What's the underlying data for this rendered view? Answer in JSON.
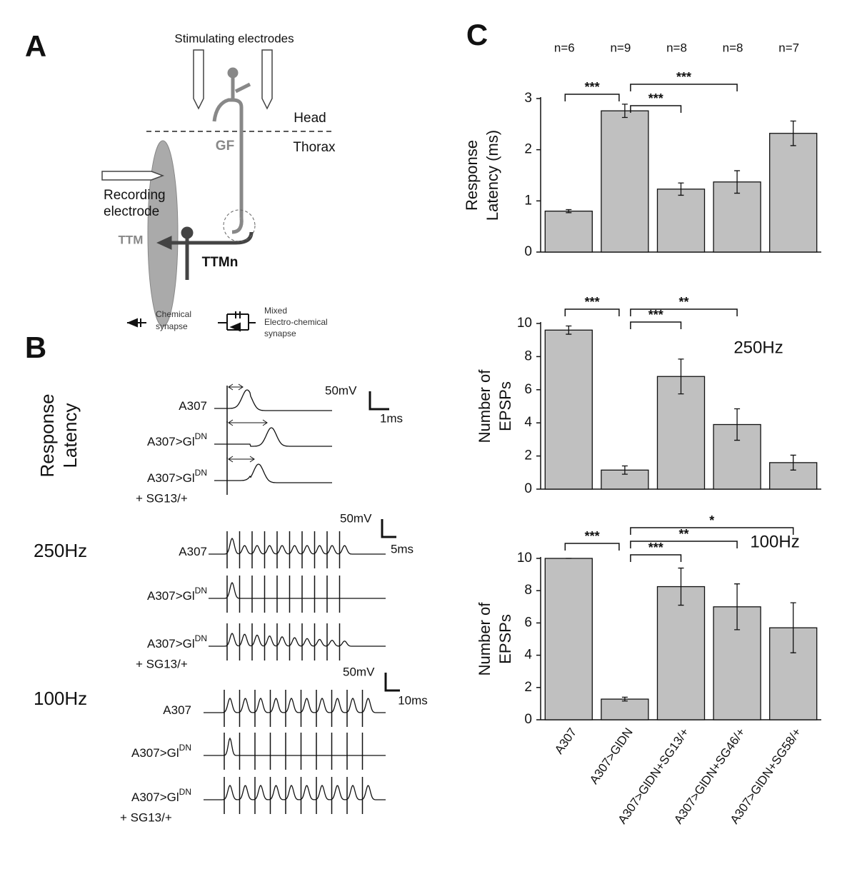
{
  "panel_labels": {
    "a": "A",
    "b": "B",
    "c": "C"
  },
  "diagram": {
    "stimulating": "Stimulating electrodes",
    "head": "Head",
    "thorax": "Thorax",
    "gf": "GF",
    "recording": [
      "Recording",
      "electrode"
    ],
    "ttm": "TTM",
    "ttmn": "TTMn",
    "chemical": [
      "Chemical",
      "synapse"
    ],
    "mixed": [
      "Mixed",
      "Electro-chemical",
      "synapse"
    ]
  },
  "recordings": [
    {
      "title": [
        "Response",
        "Latency"
      ],
      "scale_v": "50mV",
      "scale_t": "1ms",
      "traces": [
        {
          "name": "A307"
        },
        {
          "name": "A307>Gl",
          "sup": "DN"
        },
        {
          "name": "A307>Gl",
          "sup": "DN",
          "note": "+ SG13/+"
        }
      ]
    },
    {
      "title": [
        "250Hz"
      ],
      "scale_v": "50mV",
      "scale_t": "5ms",
      "traces": [
        {
          "name": "A307"
        },
        {
          "name": "A307>Gl",
          "sup": "DN"
        },
        {
          "name": "A307>Gl",
          "sup": "DN",
          "note": "+ SG13/+"
        }
      ]
    },
    {
      "title": [
        "100Hz"
      ],
      "scale_v": "50mV",
      "scale_t": "10ms",
      "traces": [
        {
          "name": "A307"
        },
        {
          "name": "A307>Gl",
          "sup": "DN"
        },
        {
          "name": "A307>Gl",
          "sup": "DN",
          "note": "+ SG13/+"
        }
      ]
    }
  ],
  "chart_data": [
    {
      "type": "bar",
      "ylabel": [
        "Response",
        "Latency (ms)"
      ],
      "categories": [
        null,
        null,
        null,
        null,
        null
      ],
      "values": [
        0.8,
        2.76,
        1.23,
        1.37,
        2.32
      ],
      "errors": [
        0.03,
        0.13,
        0.12,
        0.22,
        0.24
      ],
      "color": "#c0c0c0",
      "ylim": [
        0,
        3
      ],
      "yticks": [
        0,
        1,
        2,
        3
      ],
      "n_labels": [
        "n=6",
        "n=9",
        "n=8",
        "n=8",
        "n=7"
      ],
      "significance": [
        "***",
        "***",
        "***"
      ]
    },
    {
      "type": "bar",
      "ylabel": [
        "Number of",
        "EPSPs"
      ],
      "annotation": "250Hz",
      "categories": [
        null,
        null,
        null,
        null,
        null
      ],
      "values": [
        9.6,
        1.15,
        6.8,
        3.9,
        1.6
      ],
      "errors": [
        0.25,
        0.25,
        1.05,
        0.95,
        0.45
      ],
      "color": "#c0c0c0",
      "ylim": [
        0,
        10
      ],
      "yticks": [
        0,
        2,
        4,
        6,
        8,
        10
      ],
      "significance": [
        "***",
        "***",
        "**"
      ]
    },
    {
      "type": "bar",
      "ylabel": [
        "Number of",
        "EPSPs"
      ],
      "annotation": "100Hz",
      "categories": [
        "A307",
        "A307>GlDN",
        "A307>GlDN+SG13/+",
        "A307>GlDN+SG46/+",
        "A307>GlDN+SG58/+"
      ],
      "values": [
        10,
        1.28,
        8.25,
        7.0,
        5.7
      ],
      "errors": [
        0,
        0.12,
        1.15,
        1.42,
        1.55
      ],
      "color": "#c0c0c0",
      "ylim": [
        0,
        10
      ],
      "yticks": [
        0,
        2,
        4,
        6,
        8,
        10
      ],
      "significance": [
        "***",
        "***",
        "**",
        "*"
      ]
    }
  ]
}
